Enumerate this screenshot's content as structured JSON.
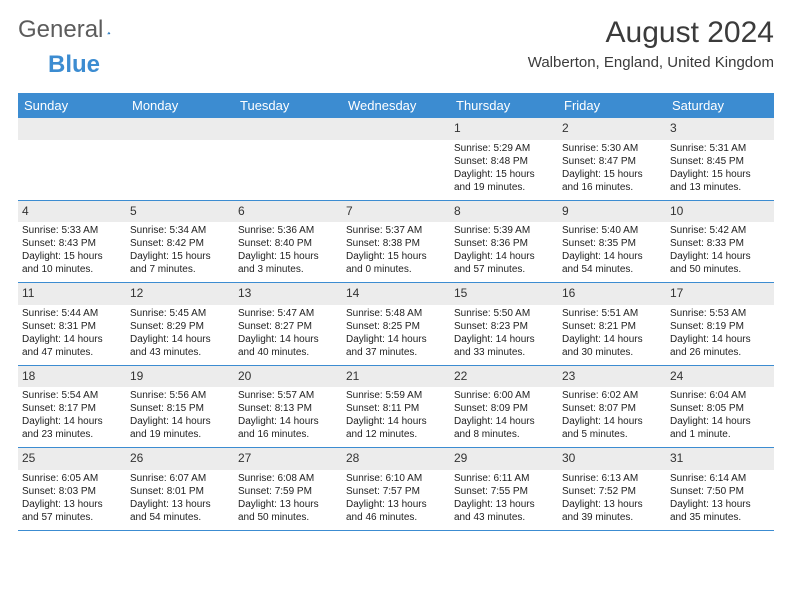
{
  "logo": {
    "part1": "General",
    "part2": "Blue"
  },
  "title": "August 2024",
  "location": "Walberton, England, United Kingdom",
  "colors": {
    "header_bg": "#3c8cd1",
    "header_text": "#ffffff",
    "daynum_bg": "#ececec",
    "border": "#3c8cd1",
    "logo_gray": "#5c5c5c",
    "logo_blue": "#3c8cd1"
  },
  "day_names": [
    "Sunday",
    "Monday",
    "Tuesday",
    "Wednesday",
    "Thursday",
    "Friday",
    "Saturday"
  ],
  "weeks": [
    [
      {
        "n": "",
        "sr": "",
        "ss": "",
        "dl": ""
      },
      {
        "n": "",
        "sr": "",
        "ss": "",
        "dl": ""
      },
      {
        "n": "",
        "sr": "",
        "ss": "",
        "dl": ""
      },
      {
        "n": "",
        "sr": "",
        "ss": "",
        "dl": ""
      },
      {
        "n": "1",
        "sr": "Sunrise: 5:29 AM",
        "ss": "Sunset: 8:48 PM",
        "dl": "Daylight: 15 hours and 19 minutes."
      },
      {
        "n": "2",
        "sr": "Sunrise: 5:30 AM",
        "ss": "Sunset: 8:47 PM",
        "dl": "Daylight: 15 hours and 16 minutes."
      },
      {
        "n": "3",
        "sr": "Sunrise: 5:31 AM",
        "ss": "Sunset: 8:45 PM",
        "dl": "Daylight: 15 hours and 13 minutes."
      }
    ],
    [
      {
        "n": "4",
        "sr": "Sunrise: 5:33 AM",
        "ss": "Sunset: 8:43 PM",
        "dl": "Daylight: 15 hours and 10 minutes."
      },
      {
        "n": "5",
        "sr": "Sunrise: 5:34 AM",
        "ss": "Sunset: 8:42 PM",
        "dl": "Daylight: 15 hours and 7 minutes."
      },
      {
        "n": "6",
        "sr": "Sunrise: 5:36 AM",
        "ss": "Sunset: 8:40 PM",
        "dl": "Daylight: 15 hours and 3 minutes."
      },
      {
        "n": "7",
        "sr": "Sunrise: 5:37 AM",
        "ss": "Sunset: 8:38 PM",
        "dl": "Daylight: 15 hours and 0 minutes."
      },
      {
        "n": "8",
        "sr": "Sunrise: 5:39 AM",
        "ss": "Sunset: 8:36 PM",
        "dl": "Daylight: 14 hours and 57 minutes."
      },
      {
        "n": "9",
        "sr": "Sunrise: 5:40 AM",
        "ss": "Sunset: 8:35 PM",
        "dl": "Daylight: 14 hours and 54 minutes."
      },
      {
        "n": "10",
        "sr": "Sunrise: 5:42 AM",
        "ss": "Sunset: 8:33 PM",
        "dl": "Daylight: 14 hours and 50 minutes."
      }
    ],
    [
      {
        "n": "11",
        "sr": "Sunrise: 5:44 AM",
        "ss": "Sunset: 8:31 PM",
        "dl": "Daylight: 14 hours and 47 minutes."
      },
      {
        "n": "12",
        "sr": "Sunrise: 5:45 AM",
        "ss": "Sunset: 8:29 PM",
        "dl": "Daylight: 14 hours and 43 minutes."
      },
      {
        "n": "13",
        "sr": "Sunrise: 5:47 AM",
        "ss": "Sunset: 8:27 PM",
        "dl": "Daylight: 14 hours and 40 minutes."
      },
      {
        "n": "14",
        "sr": "Sunrise: 5:48 AM",
        "ss": "Sunset: 8:25 PM",
        "dl": "Daylight: 14 hours and 37 minutes."
      },
      {
        "n": "15",
        "sr": "Sunrise: 5:50 AM",
        "ss": "Sunset: 8:23 PM",
        "dl": "Daylight: 14 hours and 33 minutes."
      },
      {
        "n": "16",
        "sr": "Sunrise: 5:51 AM",
        "ss": "Sunset: 8:21 PM",
        "dl": "Daylight: 14 hours and 30 minutes."
      },
      {
        "n": "17",
        "sr": "Sunrise: 5:53 AM",
        "ss": "Sunset: 8:19 PM",
        "dl": "Daylight: 14 hours and 26 minutes."
      }
    ],
    [
      {
        "n": "18",
        "sr": "Sunrise: 5:54 AM",
        "ss": "Sunset: 8:17 PM",
        "dl": "Daylight: 14 hours and 23 minutes."
      },
      {
        "n": "19",
        "sr": "Sunrise: 5:56 AM",
        "ss": "Sunset: 8:15 PM",
        "dl": "Daylight: 14 hours and 19 minutes."
      },
      {
        "n": "20",
        "sr": "Sunrise: 5:57 AM",
        "ss": "Sunset: 8:13 PM",
        "dl": "Daylight: 14 hours and 16 minutes."
      },
      {
        "n": "21",
        "sr": "Sunrise: 5:59 AM",
        "ss": "Sunset: 8:11 PM",
        "dl": "Daylight: 14 hours and 12 minutes."
      },
      {
        "n": "22",
        "sr": "Sunrise: 6:00 AM",
        "ss": "Sunset: 8:09 PM",
        "dl": "Daylight: 14 hours and 8 minutes."
      },
      {
        "n": "23",
        "sr": "Sunrise: 6:02 AM",
        "ss": "Sunset: 8:07 PM",
        "dl": "Daylight: 14 hours and 5 minutes."
      },
      {
        "n": "24",
        "sr": "Sunrise: 6:04 AM",
        "ss": "Sunset: 8:05 PM",
        "dl": "Daylight: 14 hours and 1 minute."
      }
    ],
    [
      {
        "n": "25",
        "sr": "Sunrise: 6:05 AM",
        "ss": "Sunset: 8:03 PM",
        "dl": "Daylight: 13 hours and 57 minutes."
      },
      {
        "n": "26",
        "sr": "Sunrise: 6:07 AM",
        "ss": "Sunset: 8:01 PM",
        "dl": "Daylight: 13 hours and 54 minutes."
      },
      {
        "n": "27",
        "sr": "Sunrise: 6:08 AM",
        "ss": "Sunset: 7:59 PM",
        "dl": "Daylight: 13 hours and 50 minutes."
      },
      {
        "n": "28",
        "sr": "Sunrise: 6:10 AM",
        "ss": "Sunset: 7:57 PM",
        "dl": "Daylight: 13 hours and 46 minutes."
      },
      {
        "n": "29",
        "sr": "Sunrise: 6:11 AM",
        "ss": "Sunset: 7:55 PM",
        "dl": "Daylight: 13 hours and 43 minutes."
      },
      {
        "n": "30",
        "sr": "Sunrise: 6:13 AM",
        "ss": "Sunset: 7:52 PM",
        "dl": "Daylight: 13 hours and 39 minutes."
      },
      {
        "n": "31",
        "sr": "Sunrise: 6:14 AM",
        "ss": "Sunset: 7:50 PM",
        "dl": "Daylight: 13 hours and 35 minutes."
      }
    ]
  ]
}
